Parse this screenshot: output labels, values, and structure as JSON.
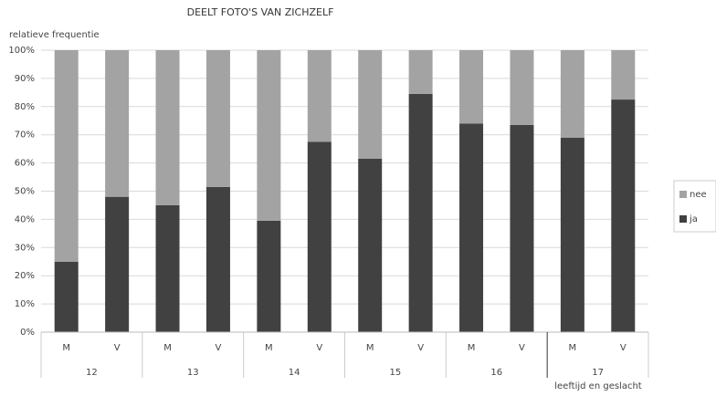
{
  "chart_data": {
    "type": "stacked_bar",
    "title": "DEELT FOTO'S VAN ZICHZELF",
    "y_label": "relatieve frequentie",
    "x_label": "leeftijd en geslacht",
    "categories": [
      "M",
      "V",
      "M",
      "V",
      "M",
      "V",
      "M",
      "V",
      "M",
      "V",
      "M",
      "V"
    ],
    "groups": [
      "12",
      "13",
      "14",
      "15",
      "16",
      "17"
    ],
    "series": [
      {
        "name": "ja",
        "color": "#414141",
        "values": [
          25,
          48,
          45,
          51.5,
          39.5,
          67.5,
          61.5,
          84.5,
          74,
          73.5,
          69,
          82.5
        ]
      },
      {
        "name": "nee",
        "color": "#a3a3a3",
        "values": [
          75,
          52,
          55,
          48.5,
          60.5,
          32.5,
          38.5,
          15.5,
          26,
          26.5,
          31,
          17.5
        ]
      }
    ],
    "ylim": [
      0,
      100
    ],
    "yticks": [
      {
        "value": 0,
        "label": "0%"
      },
      {
        "value": 10,
        "label": "10%"
      },
      {
        "value": 20,
        "label": "20%"
      },
      {
        "value": 30,
        "label": "30%"
      },
      {
        "value": 40,
        "label": "40%"
      },
      {
        "value": 50,
        "label": "50%"
      },
      {
        "value": 60,
        "label": "60%"
      },
      {
        "value": 70,
        "label": "70%"
      },
      {
        "value": 80,
        "label": "80%"
      },
      {
        "value": 90,
        "label": "90%"
      },
      {
        "value": 100,
        "label": "100%"
      }
    ],
    "grid": true
  }
}
